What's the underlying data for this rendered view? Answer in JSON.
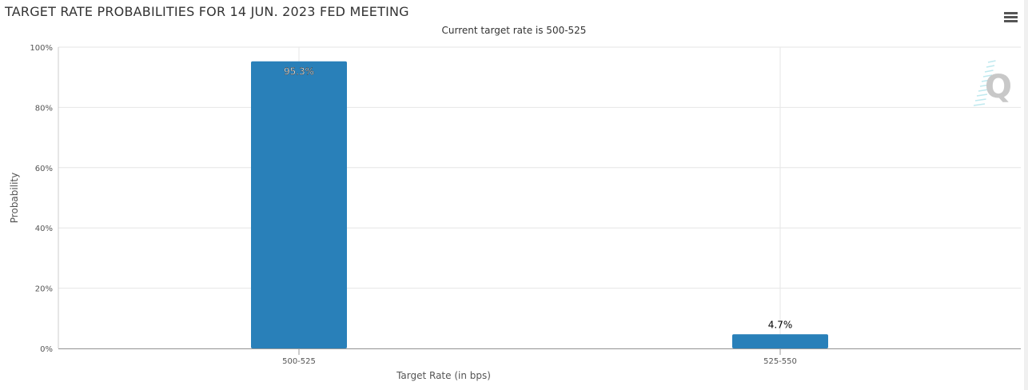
{
  "title": "TARGET RATE PROBABILITIES FOR 14 JUN. 2023 FED MEETING",
  "subtitle": "Current target rate is 500-525",
  "menu_icon": "hamburger-menu-icon",
  "watermark": "Q",
  "chart_data": {
    "type": "bar",
    "title": "TARGET RATE PROBABILITIES FOR 14 JUN. 2023 FED MEETING",
    "subtitle": "Current target rate is 500-525",
    "categories": [
      "500-525",
      "525-550"
    ],
    "values": [
      95.3,
      4.7
    ],
    "data_labels": [
      "95.3%",
      "4.7%"
    ],
    "xlabel": "Target Rate (in bps)",
    "ylabel": "Probability",
    "ylim": [
      0,
      100
    ],
    "yticks": [
      "0%",
      "20%",
      "40%",
      "60%",
      "80%",
      "100%"
    ],
    "grid": true,
    "bar_color": "#2980b9"
  }
}
